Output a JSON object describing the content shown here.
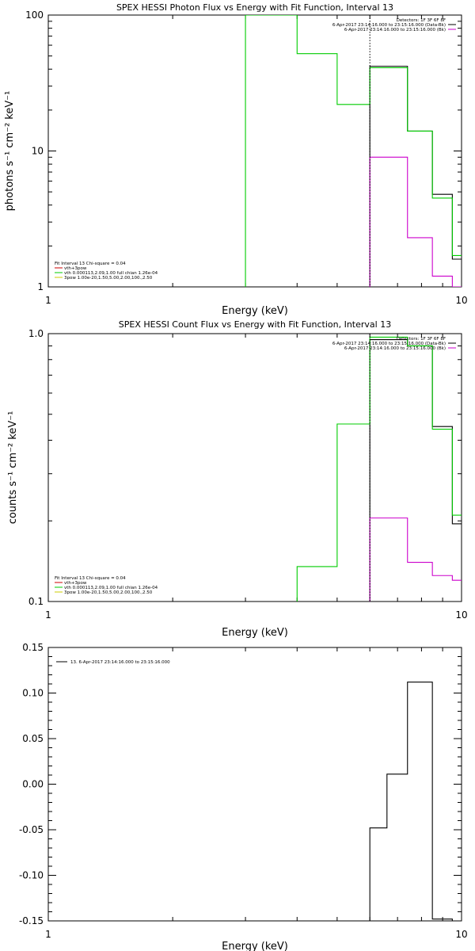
{
  "chart_data": [
    {
      "type": "line",
      "title": "SPEX HESSI Photon Flux vs Energy with Fit Function, Interval 13",
      "xlabel": "Energy (keV)",
      "ylabel": "photons s⁻¹ cm⁻² keV⁻¹",
      "xscale": "log",
      "yscale": "log",
      "xlim": [
        1,
        10
      ],
      "ylim": [
        1,
        100
      ],
      "x_ticks": [
        "1",
        "10"
      ],
      "y_ticks": [
        "1",
        "10",
        "100"
      ],
      "legend_top": [
        "Detectors: 1F 3F 6F 8F",
        "6-Apr-2017 23:14:16.000 to 23:15:16.000 (Data-Bk)",
        "6-Apr-2017 23:14:16.000 to 23:15:16.000 (Bk)"
      ],
      "legend_bottom": [
        "Fit Interval 13   Chi-square = 0.04",
        "vth+3pow",
        "vth 0.000113,2.09,1.00  full chian 1.26e-04",
        "3pow 1.00e-20,1.50,5.00,2.00,100.,2.50"
      ],
      "series": [
        {
          "name": "Data-Bk",
          "color": "#000000",
          "edges": [
            6.0,
            6.6,
            7.4,
            8.5,
            9.5,
            10.0
          ],
          "values": [
            42,
            42,
            14,
            4.8,
            1.6
          ]
        },
        {
          "name": "Bk",
          "color": "#cc00cc",
          "edges": [
            6.0,
            6.6,
            7.4,
            8.5,
            9.5,
            10.0
          ],
          "values": [
            9,
            9,
            2.3,
            1.2,
            1.0
          ]
        },
        {
          "name": "vth+3pow",
          "color": "#00cc00",
          "edges": [
            3.0,
            4.0,
            5.0,
            6.0,
            6.6,
            7.4,
            8.5,
            9.5,
            10.0
          ],
          "values": [
            100,
            52,
            22,
            41,
            41,
            14,
            4.5,
            1.7
          ]
        }
      ],
      "dotted_x": 6.0
    },
    {
      "type": "line",
      "title": "SPEX HESSI Count Flux vs Energy with Fit Function, Interval 13",
      "xlabel": "Energy (keV)",
      "ylabel": "counts s⁻¹ cm⁻² keV⁻¹",
      "xscale": "log",
      "yscale": "log",
      "xlim": [
        1,
        10
      ],
      "ylim": [
        0.1,
        1.0
      ],
      "x_ticks": [
        "1",
        "10"
      ],
      "y_ticks": [
        "0.1",
        "1.0"
      ],
      "legend_top": [
        "Detectors: 1F 3F 6F 8F",
        "6-Apr-2017 23:14:16.000 to 23:15:16.000 (Data-Bk)",
        "6-Apr-2017 23:14:16.000 to 23:15:16.000 (Bk)"
      ],
      "legend_bottom": [
        "Fit Interval 13   Chi-square = 0.04",
        "vth+3pow",
        "vth 0.000113,2.09,1.00  full chian 1.26e-04",
        "3pow 1.00e-20,1.50,5.00,2.00,100.,2.50"
      ],
      "series": [
        {
          "name": "Data-Bk",
          "color": "#000000",
          "edges": [
            6.0,
            6.6,
            7.4,
            8.5,
            9.5,
            10.0
          ],
          "values": [
            0.95,
            0.95,
            0.9,
            0.45,
            0.195
          ]
        },
        {
          "name": "Bk",
          "color": "#cc00cc",
          "edges": [
            6.0,
            6.6,
            7.4,
            8.5,
            9.5,
            10.0
          ],
          "values": [
            0.205,
            0.205,
            0.14,
            0.125,
            0.12
          ]
        },
        {
          "name": "vth+3pow",
          "color": "#00cc00",
          "edges": [
            4.0,
            5.0,
            6.0,
            6.6,
            7.4,
            8.5,
            9.5,
            10.0
          ],
          "values": [
            0.135,
            0.46,
            0.97,
            0.97,
            0.9,
            0.44,
            0.21
          ]
        }
      ],
      "dotted_x": 6.0
    },
    {
      "type": "line",
      "title": "",
      "xlabel": "Energy (keV)",
      "ylabel": "",
      "xscale": "log",
      "yscale": "linear",
      "xlim": [
        1,
        10
      ],
      "ylim": [
        -0.15,
        0.15
      ],
      "x_ticks": [
        "1",
        "10"
      ],
      "y_ticks": [
        "-0.15",
        "-0.10",
        "-0.05",
        "0.00",
        "0.05",
        "0.10",
        "0.15"
      ],
      "legend_top": [
        "13.  6-Apr-2017 23:14:16.000 to 23:15:16.000"
      ],
      "series": [
        {
          "name": "13.  6-Apr-2017 23:14:16.000 to 23:15:16.000",
          "color": "#000000",
          "edges": [
            6.0,
            6.6,
            7.4,
            8.5,
            9.5,
            10.0
          ],
          "values": [
            -0.048,
            0.011,
            0.112,
            -0.148,
            -0.15
          ]
        }
      ]
    }
  ]
}
